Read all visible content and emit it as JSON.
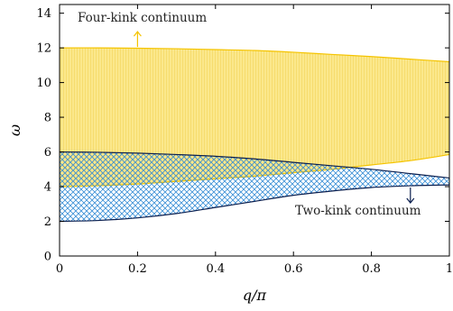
{
  "chart_data": {
    "type": "area",
    "xlabel": "q/π",
    "ylabel": "ω",
    "xlim": [
      0,
      1
    ],
    "ylim": [
      0,
      14.5
    ],
    "x_ticks": [
      "0",
      "0.2",
      "0.4",
      "0.6",
      "0.8",
      "1"
    ],
    "y_ticks": [
      "0",
      "2",
      "4",
      "6",
      "8",
      "10",
      "12",
      "14"
    ],
    "grid": false,
    "series": [
      {
        "name": "Four-kink continuum",
        "color": "#f5c400",
        "fill": "#fbe88c",
        "x": [
          0,
          0.1,
          0.2,
          0.3,
          0.4,
          0.5,
          0.6,
          0.7,
          0.8,
          0.9,
          1.0
        ],
        "lower": [
          4.0,
          4.05,
          4.15,
          4.3,
          4.45,
          4.6,
          4.8,
          5.0,
          5.25,
          5.5,
          5.85
        ],
        "upper": [
          12.0,
          12.0,
          11.98,
          11.95,
          11.9,
          11.85,
          11.75,
          11.62,
          11.5,
          11.35,
          11.2
        ]
      },
      {
        "name": "Two-kink continuum",
        "color": "#0b1f4f",
        "hatch": "#3a8fd6",
        "x": [
          0,
          0.1,
          0.2,
          0.3,
          0.4,
          0.5,
          0.6,
          0.7,
          0.8,
          0.9,
          1.0
        ],
        "lower": [
          2.0,
          2.05,
          2.2,
          2.45,
          2.8,
          3.15,
          3.5,
          3.75,
          3.95,
          4.05,
          4.1
        ],
        "upper": [
          6.0,
          5.98,
          5.93,
          5.85,
          5.75,
          5.6,
          5.4,
          5.2,
          5.0,
          4.75,
          4.5
        ]
      }
    ],
    "annotations": [
      {
        "text": "Four-kink continuum",
        "arrow": "up",
        "x": 0.2,
        "y": 12.0,
        "color": "#f5c400"
      },
      {
        "text": "Two-kink continuum",
        "arrow": "down",
        "x": 0.9,
        "y": 4.0,
        "color": "#0b1f4f"
      }
    ]
  }
}
